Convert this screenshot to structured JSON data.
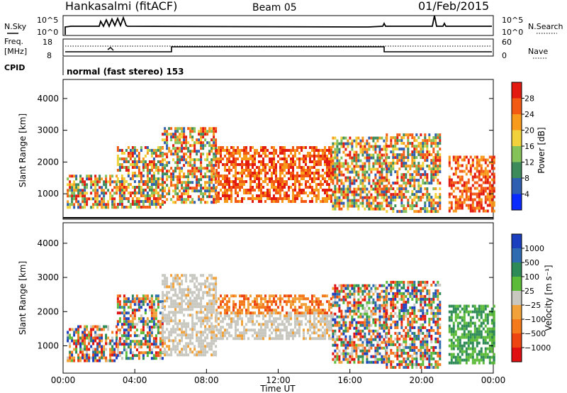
{
  "header": {
    "station": "Hankasalmi (fitACF)",
    "beam": "Beam 05",
    "date": "01/Feb/2015"
  },
  "panels": {
    "nsky": {
      "label": "N.Sky",
      "ticks": [
        "10^5",
        "10^0"
      ]
    },
    "nsearch": {
      "label": "N.Search",
      "ticks": [
        "10^5",
        "10^0"
      ]
    },
    "freq": {
      "label_top": "Freq.",
      "label_unit": "[MHz]",
      "ticks": [
        "18",
        "8"
      ]
    },
    "nave": {
      "label": "Nave",
      "ticks": [
        "60",
        "0"
      ]
    },
    "cpid": {
      "label": "CPID",
      "mode": "normal (fast stereo) 153"
    }
  },
  "chart_data": [
    {
      "type": "heatmap",
      "name": "Power",
      "ylabel": "Slant Range [km]",
      "yticks": [
        1000,
        2000,
        3000,
        4000
      ],
      "ylim": [
        200,
        4600
      ],
      "xlim": [
        0,
        24
      ],
      "colorbar": {
        "title": "Power [dB]",
        "ticks": [
          "4",
          "8",
          "12",
          "16",
          "20",
          "24",
          "28"
        ],
        "colors": [
          "#0a2bff",
          "#2f5fb0",
          "#3d8a5a",
          "#86c25a",
          "#f2d23a",
          "#f89a1c",
          "#f35b14",
          "#e31a10"
        ]
      },
      "echo_regions": [
        {
          "t": [
            0.2,
            3.0
          ],
          "range": [
            600,
            1600
          ],
          "level": "mixed"
        },
        {
          "t": [
            3.0,
            5.5
          ],
          "range": [
            600,
            2500
          ],
          "level": "mixed"
        },
        {
          "t": [
            5.5,
            8.5
          ],
          "range": [
            700,
            3100
          ],
          "level": "mixed"
        },
        {
          "t": [
            8.5,
            15.0
          ],
          "range": [
            800,
            2500
          ],
          "level": "strong"
        },
        {
          "t": [
            15.0,
            18.0
          ],
          "range": [
            500,
            2800
          ],
          "level": "mixed"
        },
        {
          "t": [
            18.0,
            21.0
          ],
          "range": [
            400,
            2900
          ],
          "level": "mixed"
        },
        {
          "t": [
            21.5,
            24.0
          ],
          "range": [
            500,
            2200
          ],
          "level": "strong"
        }
      ]
    },
    {
      "type": "heatmap",
      "name": "Velocity",
      "ylabel": "Slant Range [km]",
      "xlabel": "Time UT",
      "yticks": [
        1000,
        2000,
        3000,
        4000
      ],
      "ylim": [
        200,
        4600
      ],
      "xlim": [
        0,
        24
      ],
      "xticks": [
        "00:00",
        "04:00",
        "08:00",
        "12:00",
        "16:00",
        "20:00",
        "00:00"
      ],
      "colorbar": {
        "title": "Velocity [m s⁻¹]",
        "ticks": [
          "1000",
          "500",
          "100",
          "25",
          "−25",
          "−100",
          "−500",
          "−1000"
        ],
        "colors": [
          "#1a3fbf",
          "#2f6bb0",
          "#2e8b57",
          "#5dbb3a",
          "#c8c8c0",
          "#f2a23a",
          "#f57a1c",
          "#ee4412",
          "#e01010"
        ]
      },
      "echo_regions": [
        {
          "t": [
            0.2,
            3.0
          ],
          "range": [
            600,
            1600
          ],
          "level": "mixed"
        },
        {
          "t": [
            3.0,
            5.5
          ],
          "range": [
            600,
            2500
          ],
          "level": "mixed"
        },
        {
          "t": [
            5.5,
            8.5
          ],
          "range": [
            700,
            3100
          ],
          "level": "grey"
        },
        {
          "t": [
            8.5,
            15.0
          ],
          "range": [
            1200,
            2000
          ],
          "level": "grey"
        },
        {
          "t": [
            8.5,
            15.0
          ],
          "range": [
            2000,
            2500
          ],
          "level": "orange"
        },
        {
          "t": [
            15.0,
            18.0
          ],
          "range": [
            500,
            2800
          ],
          "level": "mixed"
        },
        {
          "t": [
            18.0,
            21.0
          ],
          "range": [
            400,
            2900
          ],
          "level": "mixed"
        },
        {
          "t": [
            21.5,
            24.0
          ],
          "range": [
            500,
            2200
          ],
          "level": "green"
        }
      ]
    }
  ]
}
